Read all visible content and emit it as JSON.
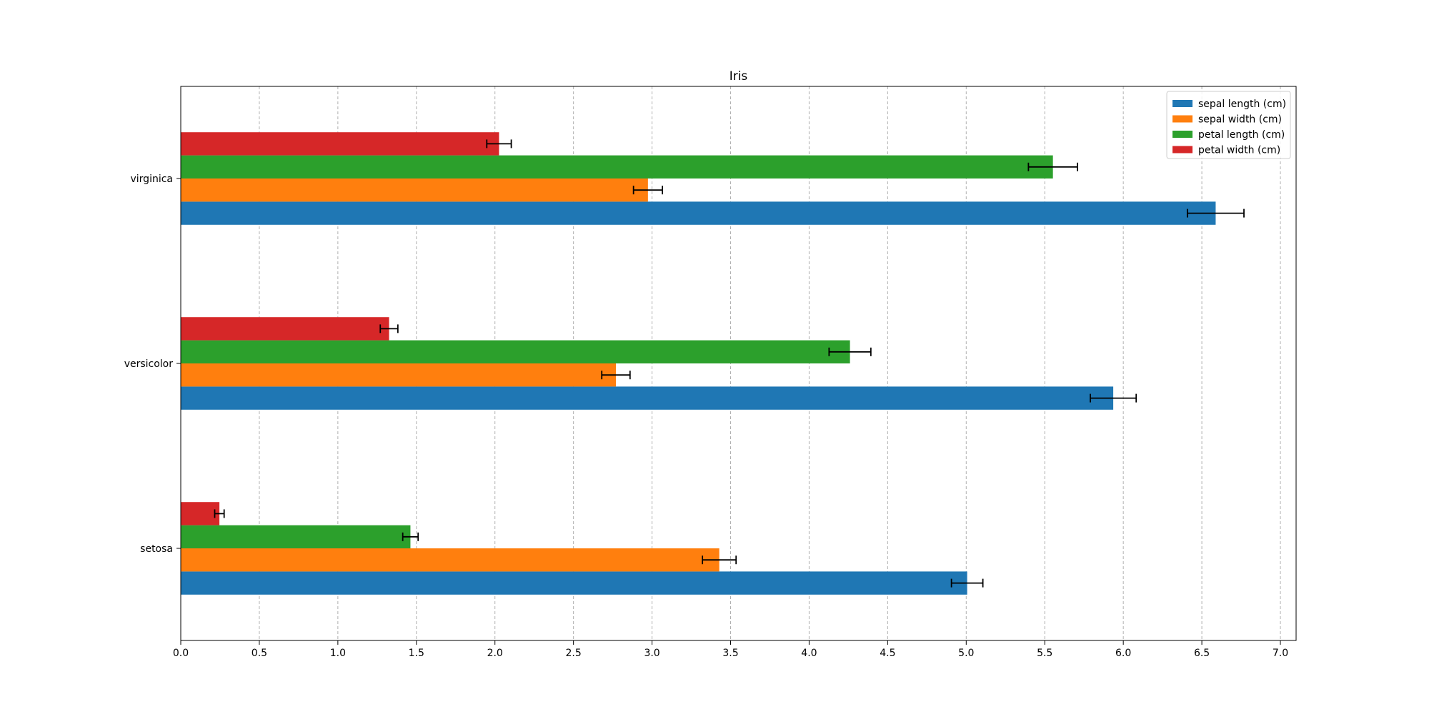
{
  "chart_data": {
    "type": "bar",
    "orientation": "horizontal",
    "title": "Iris",
    "xlabel": "",
    "ylabel": "",
    "xlim": [
      0,
      7.1
    ],
    "xticks": [
      "0.0",
      "0.5",
      "1.0",
      "1.5",
      "2.0",
      "2.5",
      "3.0",
      "3.5",
      "4.0",
      "4.5",
      "5.0",
      "5.5",
      "6.0",
      "6.5",
      "7.0"
    ],
    "grid": "x, dashed",
    "legend_position": "top-right",
    "categories": [
      "setosa",
      "versicolor",
      "virginica"
    ],
    "series": [
      {
        "name": "sepal length (cm)",
        "color": "#1f77b4",
        "values": [
          5.006,
          5.936,
          6.588
        ],
        "errors": [
          0.1,
          0.146,
          0.18
        ]
      },
      {
        "name": "sepal width (cm)",
        "color": "#ff7f0e",
        "values": [
          3.428,
          2.77,
          2.974
        ],
        "errors": [
          0.107,
          0.09,
          0.092
        ]
      },
      {
        "name": "petal length (cm)",
        "color": "#2ca02c",
        "values": [
          1.462,
          4.26,
          5.552
        ],
        "errors": [
          0.049,
          0.133,
          0.156
        ]
      },
      {
        "name": "petal width (cm)",
        "color": "#d62728",
        "values": [
          0.246,
          1.326,
          2.026
        ],
        "errors": [
          0.03,
          0.056,
          0.078
        ]
      }
    ]
  }
}
